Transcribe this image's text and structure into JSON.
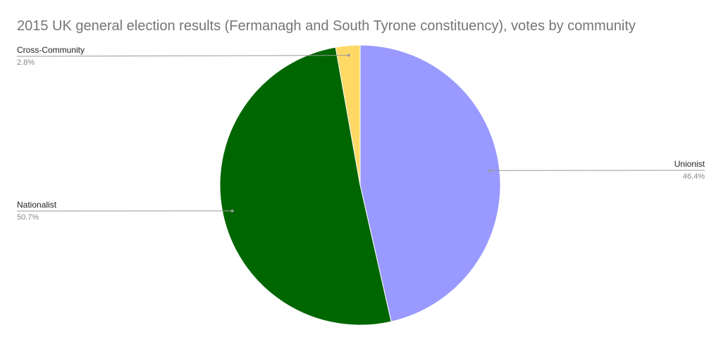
{
  "chart_data": {
    "type": "pie",
    "title": "2015 UK general election results (Fermanagh and South Tyrone constituency), votes by community",
    "categories": [
      "Unionist",
      "Nationalist",
      "Cross-Community"
    ],
    "values": [
      46.4,
      50.7,
      2.8
    ],
    "value_labels": [
      "46.4%",
      "50.7%",
      "2.8%"
    ],
    "colors": [
      "#9999ff",
      "#006600",
      "#ffd966"
    ]
  }
}
